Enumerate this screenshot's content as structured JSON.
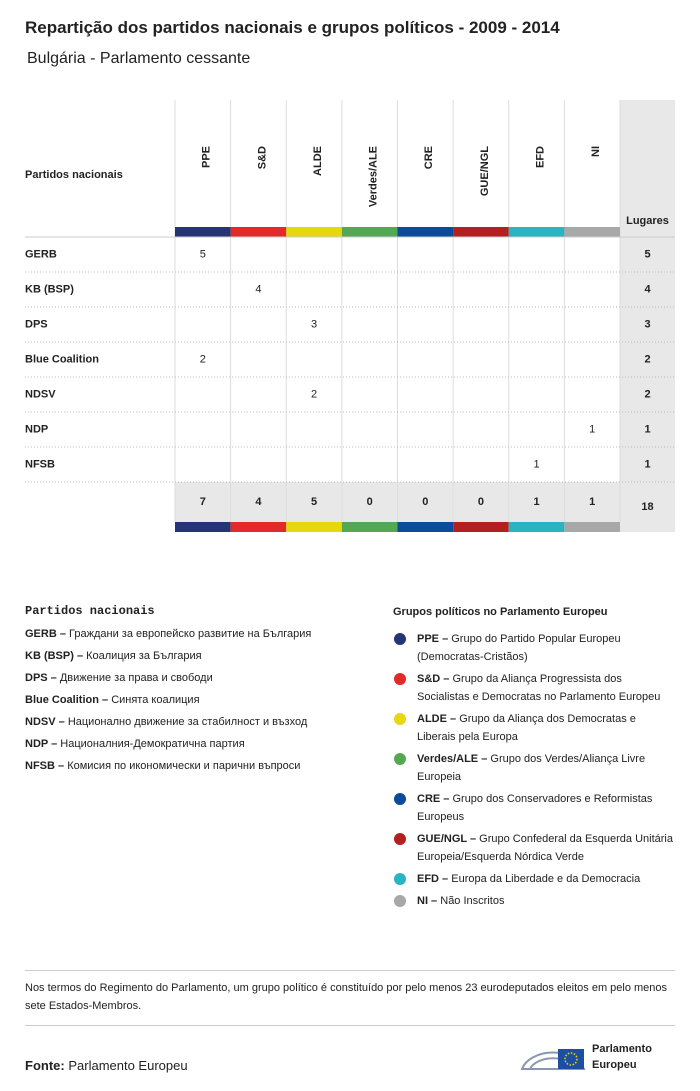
{
  "header": {
    "title": "Repartição dos partidos nacionais e grupos políticos - 2009 - 2014",
    "subtitle": "Bulgária - Parlamento cessante"
  },
  "table": {
    "row_header": "Partidos nacionais",
    "seats_header": "Lugares",
    "groups": [
      {
        "abbr": "PPE",
        "color": "#263476"
      },
      {
        "abbr": "S&D",
        "color": "#e32a2a"
      },
      {
        "abbr": "ALDE",
        "color": "#e8d60e"
      },
      {
        "abbr": "Verdes/ALE",
        "color": "#54a854"
      },
      {
        "abbr": "CRE",
        "color": "#0c4a9a"
      },
      {
        "abbr": "GUE/NGL",
        "color": "#b41f1f"
      },
      {
        "abbr": "EFD",
        "color": "#28b5c2"
      },
      {
        "abbr": "NI",
        "color": "#a8a8a8"
      }
    ],
    "rows": [
      {
        "party": "GERB",
        "group": "PPE",
        "count": 5,
        "seats": 5
      },
      {
        "party": "KB (BSP)",
        "group": "S&D",
        "count": 4,
        "seats": 4
      },
      {
        "party": "DPS",
        "group": "ALDE",
        "count": 3,
        "seats": 3
      },
      {
        "party": "Blue Coalition",
        "group": "PPE",
        "count": 2,
        "seats": 2
      },
      {
        "party": "NDSV",
        "group": "ALDE",
        "count": 2,
        "seats": 2
      },
      {
        "party": "NDP",
        "group": "NI",
        "count": 1,
        "seats": 1
      },
      {
        "party": "NFSB",
        "group": "EFD",
        "count": 1,
        "seats": 1
      }
    ],
    "totals": [
      7,
      4,
      5,
      0,
      0,
      0,
      1,
      1
    ],
    "total_seats": 18
  },
  "legend_national": {
    "title": "Partidos nacionais",
    "items": [
      {
        "label": "GERB –",
        "text": "Граждани за европейско развитие на България"
      },
      {
        "label": "KB (BSP) –",
        "text": "Коалиция за България"
      },
      {
        "label": "DPS –",
        "text": "Движение за права и свободи"
      },
      {
        "label": "Blue Coalition –",
        "text": "Синята коалиция"
      },
      {
        "label": "NDSV –",
        "text": "Национално движение за стабилност и възход"
      },
      {
        "label": "NDP –",
        "text": "Националния-Демократична партия"
      },
      {
        "label": "NFSB –",
        "text": "Комисия по икономически и парични въпроси"
      }
    ]
  },
  "legend_groups": {
    "title": "Grupos políticos no Parlamento Europeu",
    "items": [
      {
        "label": "PPE –",
        "text": "Grupo do Partido Popular Europeu (Democratas-Cristãos)"
      },
      {
        "label": "S&D –",
        "text": "Grupo da Aliança Progressista dos Socialistas e Democratas no Parlamento Europeu"
      },
      {
        "label": "ALDE –",
        "text": "Grupo da Aliança dos Democratas e Liberais pela Europa"
      },
      {
        "label": "Verdes/ALE –",
        "text": "Grupo dos Verdes/Aliança Livre Europeia"
      },
      {
        "label": "CRE –",
        "text": "Grupo dos Conservadores e Reformistas Europeus"
      },
      {
        "label": "GUE/NGL –",
        "text": "Grupo Confederal da Esquerda Unitária Europeia/Esquerda Nórdica Verde"
      },
      {
        "label": "EFD –",
        "text": "Europa da Liberdade e da Democracia"
      },
      {
        "label": "NI –",
        "text": "Não Inscritos"
      }
    ]
  },
  "note": "Nos termos do Regimento do Parlamento, um grupo político é constituído por pelo menos 23 eurodeputados eleitos em pelo menos sete Estados-Membros.",
  "footer": {
    "source_label": "Fonte:",
    "source": "Parlamento Europeu",
    "logo_line1": "Parlamento",
    "logo_line2": "Europeu"
  }
}
